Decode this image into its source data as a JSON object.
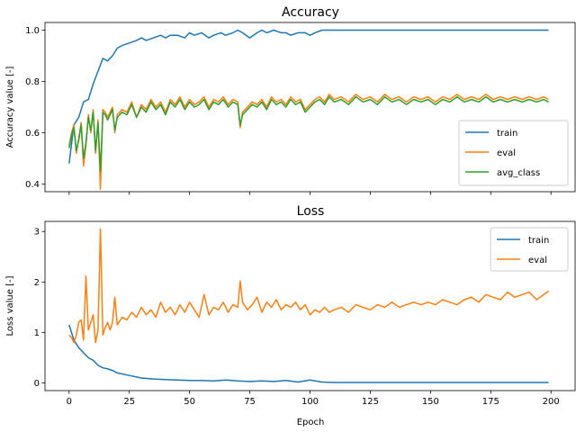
{
  "chart_data": [
    {
      "type": "line",
      "title": "Accuracy",
      "xlabel": "",
      "ylabel": "Accuracy value [-]",
      "xlim": [
        -10,
        210
      ],
      "ylim": [
        0.37,
        1.03
      ],
      "xticks": [
        0,
        25,
        50,
        75,
        100,
        125,
        150,
        175,
        200
      ],
      "xtick_labels_shown": false,
      "yticks": [
        0.4,
        0.6,
        0.8,
        1.0
      ],
      "ytick_labels": [
        "0.4",
        "0.6",
        "0.8",
        "1.0"
      ],
      "grid": false,
      "legend": "lower-right",
      "series": [
        {
          "name": "train",
          "color": "#1f77b4",
          "x": [
            0,
            2,
            4,
            6,
            8,
            10,
            12,
            14,
            16,
            18,
            20,
            22,
            25,
            28,
            30,
            32,
            35,
            38,
            40,
            42,
            45,
            48,
            50,
            52,
            55,
            58,
            60,
            63,
            65,
            68,
            70,
            72,
            75,
            78,
            80,
            82,
            85,
            88,
            90,
            92,
            95,
            98,
            100,
            102,
            105,
            108,
            110,
            120,
            130,
            140,
            150,
            160,
            170,
            180,
            190,
            199
          ],
          "y": [
            0.48,
            0.63,
            0.66,
            0.72,
            0.73,
            0.79,
            0.84,
            0.89,
            0.88,
            0.9,
            0.93,
            0.94,
            0.95,
            0.96,
            0.97,
            0.96,
            0.97,
            0.98,
            0.97,
            0.98,
            0.98,
            0.97,
            0.99,
            0.98,
            0.99,
            0.97,
            0.98,
            0.99,
            0.98,
            0.99,
            1.0,
            0.99,
            0.97,
            0.99,
            1.0,
            0.99,
            1.0,
            0.99,
            0.99,
            0.98,
            0.99,
            0.99,
            0.98,
            0.99,
            1.0,
            1.0,
            1.0,
            1.0,
            1.0,
            1.0,
            1.0,
            1.0,
            1.0,
            1.0,
            1.0,
            1.0
          ]
        },
        {
          "name": "eval",
          "color": "#ff7f0e",
          "x": [
            0,
            1,
            2,
            3,
            4,
            5,
            6,
            7,
            8,
            9,
            10,
            11,
            12,
            13,
            14,
            15,
            16,
            17,
            18,
            19,
            20,
            22,
            24,
            26,
            28,
            30,
            32,
            34,
            36,
            38,
            40,
            42,
            44,
            46,
            48,
            50,
            52,
            54,
            56,
            58,
            60,
            62,
            64,
            66,
            68,
            70,
            71,
            72,
            74,
            76,
            78,
            80,
            82,
            84,
            86,
            88,
            90,
            92,
            94,
            96,
            98,
            100,
            102,
            104,
            106,
            108,
            110,
            113,
            116,
            119,
            122,
            125,
            128,
            131,
            134,
            137,
            140,
            143,
            146,
            149,
            152,
            155,
            158,
            161,
            164,
            167,
            170,
            173,
            176,
            179,
            182,
            185,
            188,
            191,
            194,
            197,
            199
          ],
          "y": [
            0.55,
            0.6,
            0.63,
            0.52,
            0.58,
            0.64,
            0.47,
            0.55,
            0.67,
            0.6,
            0.69,
            0.52,
            0.65,
            0.38,
            0.69,
            0.68,
            0.66,
            0.68,
            0.7,
            0.6,
            0.67,
            0.69,
            0.68,
            0.72,
            0.66,
            0.71,
            0.69,
            0.73,
            0.7,
            0.72,
            0.68,
            0.73,
            0.71,
            0.74,
            0.7,
            0.73,
            0.71,
            0.72,
            0.74,
            0.7,
            0.73,
            0.72,
            0.74,
            0.71,
            0.73,
            0.72,
            0.62,
            0.68,
            0.7,
            0.72,
            0.71,
            0.73,
            0.7,
            0.74,
            0.72,
            0.73,
            0.71,
            0.74,
            0.72,
            0.73,
            0.69,
            0.71,
            0.73,
            0.74,
            0.72,
            0.75,
            0.73,
            0.74,
            0.72,
            0.75,
            0.73,
            0.74,
            0.72,
            0.75,
            0.73,
            0.74,
            0.72,
            0.74,
            0.73,
            0.74,
            0.72,
            0.74,
            0.73,
            0.75,
            0.73,
            0.74,
            0.73,
            0.75,
            0.73,
            0.74,
            0.73,
            0.74,
            0.73,
            0.74,
            0.73,
            0.74,
            0.73
          ]
        },
        {
          "name": "avg_class",
          "color": "#2ca02c",
          "x": [
            0,
            1,
            2,
            3,
            4,
            5,
            6,
            7,
            8,
            9,
            10,
            11,
            12,
            13,
            14,
            15,
            16,
            17,
            18,
            19,
            20,
            22,
            24,
            26,
            28,
            30,
            32,
            34,
            36,
            38,
            40,
            42,
            44,
            46,
            48,
            50,
            52,
            54,
            56,
            58,
            60,
            62,
            64,
            66,
            68,
            70,
            71,
            72,
            74,
            76,
            78,
            80,
            82,
            84,
            86,
            88,
            90,
            92,
            94,
            96,
            98,
            100,
            102,
            104,
            106,
            108,
            110,
            113,
            116,
            119,
            122,
            125,
            128,
            131,
            134,
            137,
            140,
            143,
            146,
            149,
            152,
            155,
            158,
            161,
            164,
            167,
            170,
            173,
            176,
            179,
            182,
            185,
            188,
            191,
            194,
            197,
            199
          ],
          "y": [
            0.54,
            0.59,
            0.62,
            0.53,
            0.57,
            0.63,
            0.5,
            0.56,
            0.66,
            0.61,
            0.68,
            0.53,
            0.64,
            0.45,
            0.68,
            0.67,
            0.65,
            0.67,
            0.69,
            0.61,
            0.66,
            0.68,
            0.67,
            0.71,
            0.66,
            0.7,
            0.68,
            0.72,
            0.69,
            0.71,
            0.67,
            0.72,
            0.7,
            0.73,
            0.69,
            0.72,
            0.7,
            0.71,
            0.73,
            0.69,
            0.72,
            0.71,
            0.73,
            0.7,
            0.72,
            0.71,
            0.63,
            0.67,
            0.69,
            0.71,
            0.7,
            0.72,
            0.69,
            0.73,
            0.71,
            0.72,
            0.7,
            0.73,
            0.71,
            0.72,
            0.68,
            0.7,
            0.72,
            0.73,
            0.71,
            0.74,
            0.72,
            0.73,
            0.71,
            0.74,
            0.72,
            0.73,
            0.71,
            0.74,
            0.72,
            0.73,
            0.71,
            0.73,
            0.72,
            0.73,
            0.71,
            0.73,
            0.72,
            0.74,
            0.72,
            0.73,
            0.72,
            0.74,
            0.72,
            0.73,
            0.72,
            0.73,
            0.72,
            0.73,
            0.72,
            0.73,
            0.72
          ]
        }
      ]
    },
    {
      "type": "line",
      "title": "Loss",
      "xlabel": "Epoch",
      "ylabel": "Loss value [-]",
      "xlim": [
        -10,
        210
      ],
      "ylim": [
        -0.15,
        3.2
      ],
      "xticks": [
        0,
        25,
        50,
        75,
        100,
        125,
        150,
        175,
        200
      ],
      "xtick_labels": [
        "0",
        "25",
        "50",
        "75",
        "100",
        "125",
        "150",
        "175",
        "200"
      ],
      "yticks": [
        0,
        1,
        2,
        3
      ],
      "ytick_labels": [
        "0",
        "1",
        "2",
        "3"
      ],
      "grid": false,
      "legend": "upper-right",
      "series": [
        {
          "name": "train",
          "color": "#1f77b4",
          "x": [
            0,
            2,
            4,
            6,
            8,
            10,
            12,
            14,
            16,
            18,
            20,
            25,
            30,
            35,
            40,
            45,
            50,
            55,
            60,
            65,
            70,
            75,
            80,
            85,
            90,
            95,
            100,
            105,
            110,
            120,
            130,
            140,
            150,
            160,
            170,
            180,
            190,
            199
          ],
          "y": [
            1.15,
            0.85,
            0.7,
            0.6,
            0.5,
            0.45,
            0.35,
            0.3,
            0.28,
            0.25,
            0.2,
            0.15,
            0.1,
            0.08,
            0.07,
            0.06,
            0.05,
            0.05,
            0.04,
            0.06,
            0.04,
            0.03,
            0.04,
            0.03,
            0.05,
            0.02,
            0.06,
            0.02,
            0.01,
            0.01,
            0.01,
            0.01,
            0.01,
            0.01,
            0.01,
            0.01,
            0.01,
            0.01
          ]
        },
        {
          "name": "eval",
          "color": "#ff7f0e",
          "x": [
            0,
            1,
            2,
            3,
            4,
            5,
            6,
            7,
            8,
            9,
            10,
            11,
            12,
            13,
            14,
            15,
            16,
            17,
            18,
            19,
            20,
            22,
            24,
            26,
            28,
            30,
            32,
            34,
            36,
            38,
            40,
            42,
            44,
            46,
            48,
            50,
            52,
            54,
            56,
            58,
            60,
            62,
            64,
            66,
            68,
            70,
            71,
            72,
            74,
            76,
            78,
            80,
            82,
            84,
            86,
            88,
            90,
            92,
            94,
            96,
            98,
            100,
            102,
            104,
            106,
            108,
            110,
            113,
            116,
            119,
            122,
            125,
            128,
            131,
            134,
            137,
            140,
            143,
            146,
            149,
            152,
            155,
            158,
            161,
            164,
            167,
            170,
            173,
            176,
            179,
            182,
            185,
            188,
            191,
            194,
            197,
            199
          ],
          "y": [
            0.95,
            0.9,
            0.8,
            0.95,
            1.2,
            1.25,
            0.85,
            2.12,
            1.05,
            1.2,
            1.35,
            0.8,
            1.05,
            3.05,
            0.95,
            1.1,
            1.2,
            1.05,
            1.2,
            1.7,
            1.15,
            1.3,
            1.25,
            1.4,
            1.3,
            1.5,
            1.35,
            1.45,
            1.3,
            1.6,
            1.4,
            1.5,
            1.35,
            1.55,
            1.4,
            1.6,
            1.45,
            1.3,
            1.75,
            1.35,
            1.5,
            1.45,
            1.6,
            1.4,
            1.55,
            1.5,
            2.02,
            1.6,
            1.45,
            1.55,
            1.7,
            1.4,
            1.6,
            1.5,
            1.65,
            1.45,
            1.55,
            1.5,
            1.6,
            1.45,
            1.55,
            1.35,
            1.45,
            1.4,
            1.5,
            1.4,
            1.45,
            1.5,
            1.4,
            1.55,
            1.5,
            1.45,
            1.55,
            1.5,
            1.6,
            1.5,
            1.55,
            1.6,
            1.55,
            1.6,
            1.55,
            1.65,
            1.6,
            1.55,
            1.65,
            1.7,
            1.6,
            1.75,
            1.7,
            1.65,
            1.8,
            1.7,
            1.75,
            1.8,
            1.65,
            1.75,
            1.82
          ]
        }
      ]
    }
  ]
}
